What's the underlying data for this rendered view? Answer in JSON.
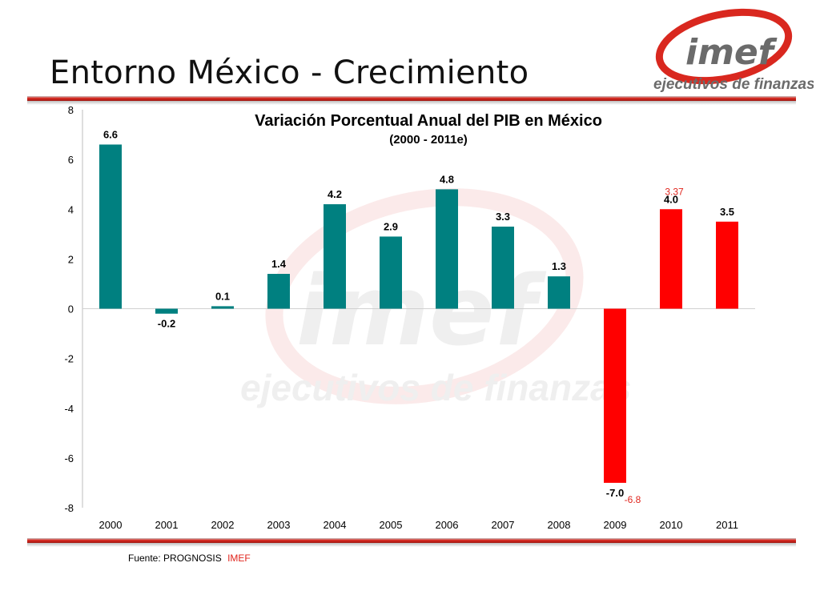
{
  "slide": {
    "title": "Entorno México - Crecimiento",
    "source_label": "Fuente: PROGNOSIS",
    "source_org": "IMEF"
  },
  "logo": {
    "wordmark": "imef",
    "tagline": "ejecutivos de finanzas",
    "color": "#d9281f"
  },
  "chart_data": {
    "type": "bar",
    "title": "Variación Porcentual Anual del PIB en México",
    "subtitle": "(2000 - 2011e)",
    "categories": [
      "2000",
      "2001",
      "2002",
      "2003",
      "2004",
      "2005",
      "2006",
      "2007",
      "2008",
      "2009",
      "2010",
      "2011"
    ],
    "values": [
      6.6,
      -0.2,
      0.1,
      1.4,
      4.2,
      2.9,
      4.8,
      3.3,
      1.3,
      -7.0,
      4.0,
      3.5
    ],
    "value_labels": [
      "6.6",
      "-0.2",
      "0.1",
      "1.4",
      "4.2",
      "2.9",
      "4.8",
      "3.3",
      "1.3",
      "-7.0",
      "4.0",
      "3.5"
    ],
    "bar_colors": [
      "#008080",
      "#008080",
      "#008080",
      "#008080",
      "#008080",
      "#008080",
      "#008080",
      "#008080",
      "#008080",
      "#ff0000",
      "#ff0000",
      "#ff0000"
    ],
    "annotations": [
      {
        "category": "2009",
        "value": -6.8,
        "text": "-6.8",
        "color": "#e0241c"
      },
      {
        "category": "2010",
        "value": 3.37,
        "text": "3.37",
        "color": "#e0241c"
      }
    ],
    "ylim": [
      -8,
      8
    ],
    "yticks": [
      "-8",
      "-6",
      "-4",
      "-2",
      "0",
      "2",
      "4",
      "6",
      "8"
    ],
    "grid": false,
    "xlabel": "",
    "ylabel": ""
  }
}
